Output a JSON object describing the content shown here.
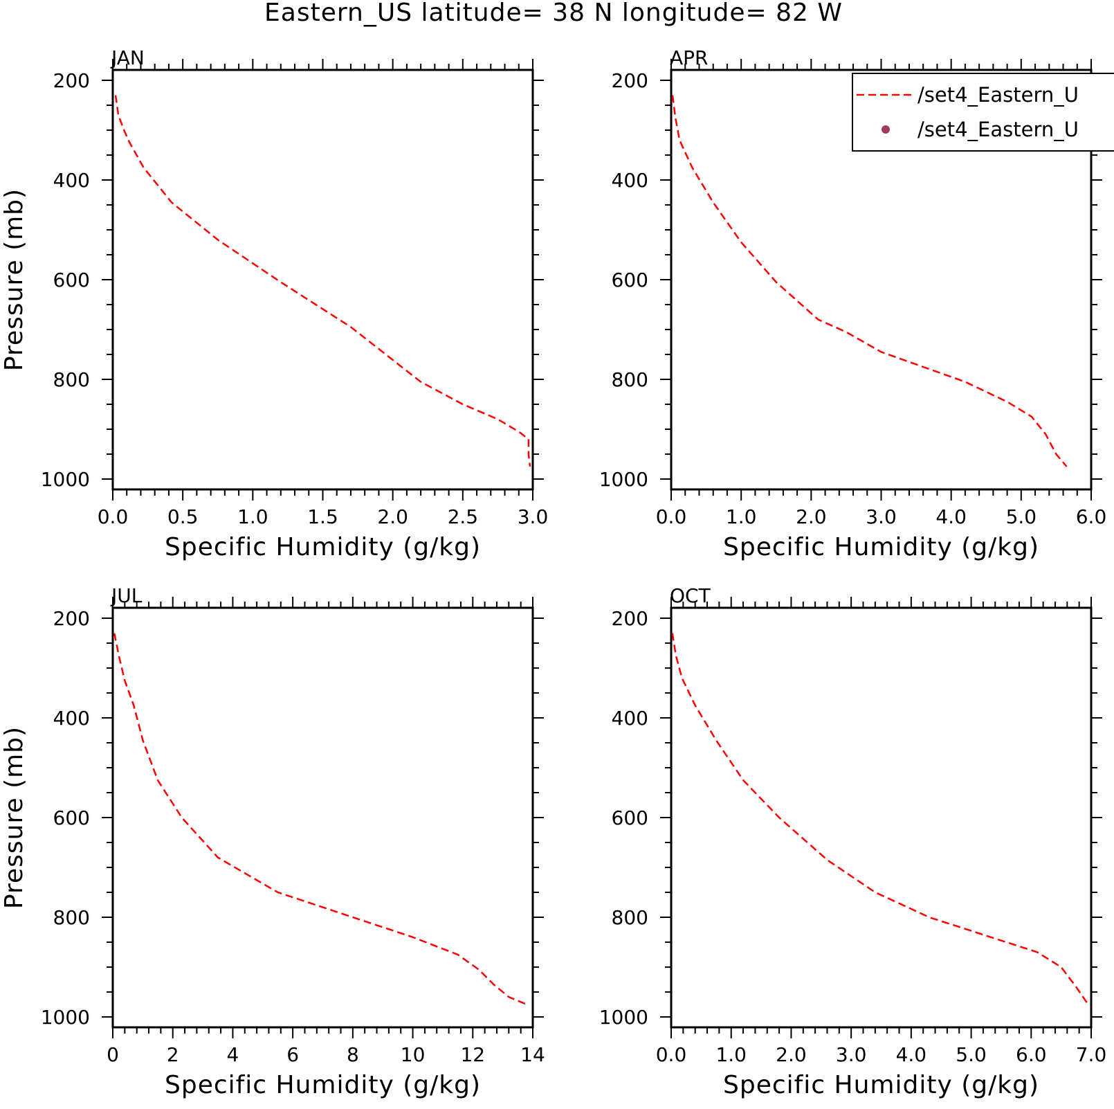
{
  "figure": {
    "title": "Eastern_US  latitude= 38 N longitude= 82 W"
  },
  "legend": {
    "entries": [
      {
        "label": "/set4_Eastern_U",
        "style": "dashed-line",
        "color": "#ff0000"
      },
      {
        "label": "/set4_Eastern_U",
        "style": "dot",
        "color": "#a33a5e"
      }
    ]
  },
  "colors": {
    "line": "#ff0000",
    "marker": "#a33a5e",
    "axis": "#000000"
  },
  "chart_data": [
    {
      "type": "line",
      "panel": "JAN",
      "xlabel": "Specific Humidity (g/kg)",
      "ylabel": "Pressure (mb)",
      "xlim": [
        0,
        3
      ],
      "ylim": [
        200,
        1000
      ],
      "y_inverted": true,
      "xticks": [
        "0.0",
        "0.5",
        "1.0",
        "1.5",
        "2.0",
        "2.5",
        "3.0"
      ],
      "xtick_values": [
        0,
        0.5,
        1.0,
        1.5,
        2.0,
        2.5,
        3.0
      ],
      "yticks": [
        "200",
        "400",
        "600",
        "800",
        "1000"
      ],
      "ytick_values": [
        200,
        400,
        600,
        800,
        1000
      ],
      "series": [
        {
          "line_style": "dashed",
          "color": "#ff0000",
          "points": [
            [
              0.02,
              230
            ],
            [
              0.04,
              270
            ],
            [
              0.08,
              300
            ],
            [
              0.12,
              325
            ],
            [
              0.22,
              375
            ],
            [
              0.42,
              445
            ],
            [
              0.75,
              520
            ],
            [
              1.2,
              605
            ],
            [
              1.7,
              695
            ],
            [
              2.2,
              805
            ],
            [
              2.5,
              850
            ],
            [
              2.75,
              880
            ],
            [
              2.9,
              905
            ],
            [
              2.97,
              920
            ],
            [
              2.97,
              950
            ],
            [
              2.98,
              975
            ]
          ]
        }
      ]
    },
    {
      "type": "line",
      "panel": "APR",
      "xlabel": "Specific Humidity (g/kg)",
      "ylabel": "",
      "xlim": [
        0,
        6
      ],
      "ylim": [
        200,
        1000
      ],
      "y_inverted": true,
      "xticks": [
        "0.0",
        "1.0",
        "2.0",
        "3.0",
        "4.0",
        "5.0",
        "6.0"
      ],
      "xtick_values": [
        0,
        1,
        2,
        3,
        4,
        5,
        6
      ],
      "yticks": [
        "200",
        "400",
        "600",
        "800",
        "1000"
      ],
      "ytick_values": [
        200,
        400,
        600,
        800,
        1000
      ],
      "series": [
        {
          "line_style": "dashed",
          "color": "#ff0000",
          "points": [
            [
              0.02,
              230
            ],
            [
              0.06,
              275
            ],
            [
              0.12,
              320
            ],
            [
              0.3,
              375
            ],
            [
              0.6,
              445
            ],
            [
              1.0,
              525
            ],
            [
              1.5,
              605
            ],
            [
              2.1,
              680
            ],
            [
              2.5,
              705
            ],
            [
              3.0,
              745
            ],
            [
              3.6,
              775
            ],
            [
              4.2,
              805
            ],
            [
              4.8,
              845
            ],
            [
              5.15,
              875
            ],
            [
              5.35,
              910
            ],
            [
              5.5,
              950
            ],
            [
              5.65,
              975
            ]
          ]
        }
      ]
    },
    {
      "type": "line",
      "panel": "JUL",
      "xlabel": "Specific Humidity (g/kg)",
      "ylabel": "Pressure (mb)",
      "xlim": [
        0,
        14
      ],
      "ylim": [
        200,
        1000
      ],
      "y_inverted": true,
      "xticks": [
        "0",
        "2",
        "4",
        "6",
        "8",
        "10",
        "12",
        "14"
      ],
      "xtick_values": [
        0,
        2,
        4,
        6,
        8,
        10,
        12,
        14
      ],
      "yticks": [
        "200",
        "400",
        "600",
        "800",
        "1000"
      ],
      "ytick_values": [
        200,
        400,
        600,
        800,
        1000
      ],
      "series": [
        {
          "line_style": "dashed",
          "color": "#ff0000",
          "points": [
            [
              0.05,
              230
            ],
            [
              0.2,
              275
            ],
            [
              0.4,
              325
            ],
            [
              0.7,
              375
            ],
            [
              1.0,
              445
            ],
            [
              1.5,
              525
            ],
            [
              2.3,
              600
            ],
            [
              3.5,
              680
            ],
            [
              4.5,
              715
            ],
            [
              5.5,
              750
            ],
            [
              7.5,
              790
            ],
            [
              10.0,
              840
            ],
            [
              11.5,
              875
            ],
            [
              12.2,
              905
            ],
            [
              12.7,
              935
            ],
            [
              13.2,
              960
            ],
            [
              13.8,
              975
            ]
          ]
        }
      ]
    },
    {
      "type": "line",
      "panel": "OCT",
      "xlabel": "Specific Humidity (g/kg)",
      "ylabel": "",
      "xlim": [
        0,
        7
      ],
      "ylim": [
        200,
        1000
      ],
      "y_inverted": true,
      "xticks": [
        "0.0",
        "1.0",
        "2.0",
        "3.0",
        "4.0",
        "5.0",
        "6.0",
        "7.0"
      ],
      "xtick_values": [
        0,
        1,
        2,
        3,
        4,
        5,
        6,
        7
      ],
      "yticks": [
        "200",
        "400",
        "600",
        "800",
        "1000"
      ],
      "ytick_values": [
        200,
        400,
        600,
        800,
        1000
      ],
      "series": [
        {
          "line_style": "dashed",
          "color": "#ff0000",
          "points": [
            [
              0.02,
              230
            ],
            [
              0.08,
              275
            ],
            [
              0.18,
              320
            ],
            [
              0.4,
              375
            ],
            [
              0.75,
              445
            ],
            [
              1.2,
              525
            ],
            [
              1.8,
              600
            ],
            [
              2.6,
              685
            ],
            [
              3.4,
              750
            ],
            [
              4.3,
              800
            ],
            [
              5.2,
              835
            ],
            [
              6.1,
              870
            ],
            [
              6.5,
              900
            ],
            [
              6.75,
              940
            ],
            [
              6.95,
              975
            ]
          ]
        }
      ]
    }
  ]
}
